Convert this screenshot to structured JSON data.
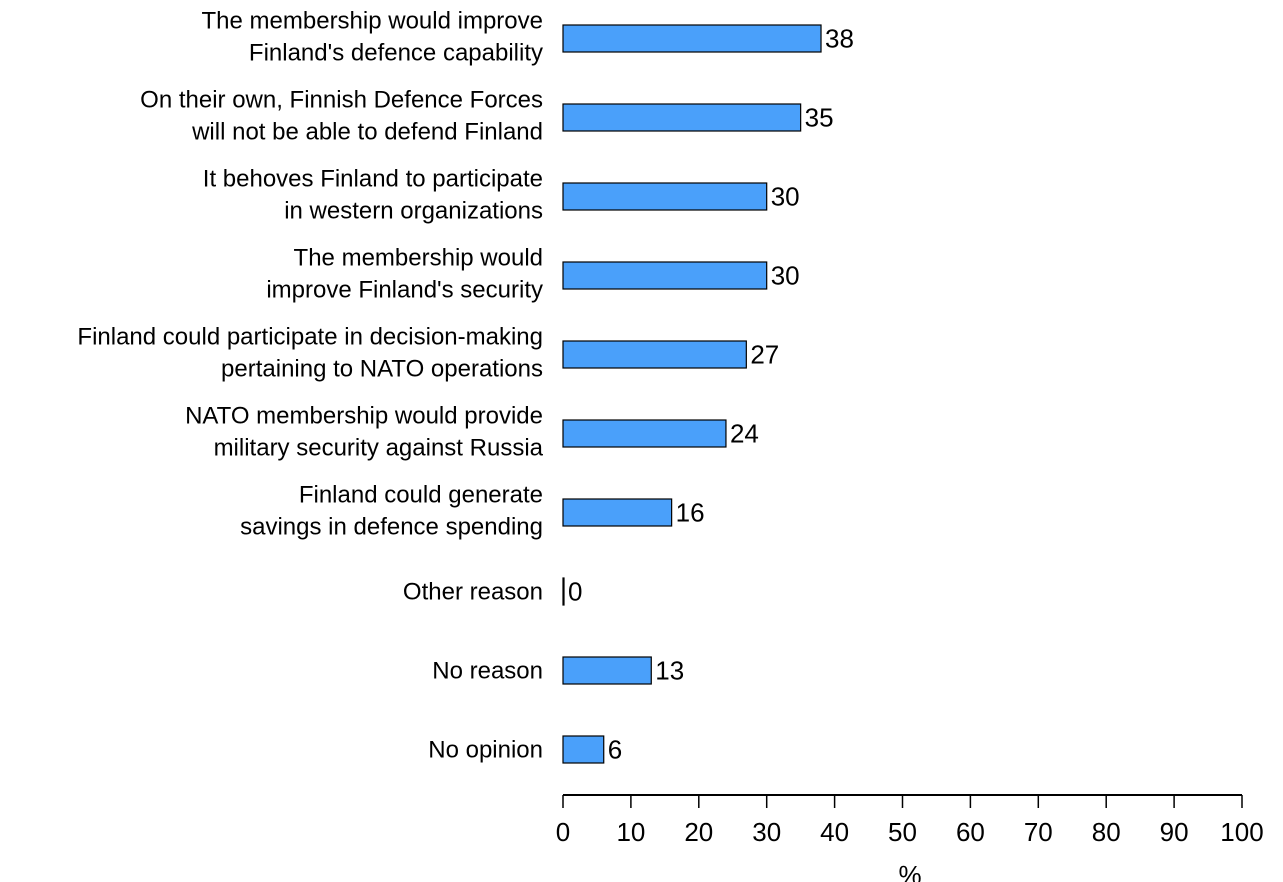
{
  "chart_data": {
    "type": "bar",
    "orientation": "horizontal",
    "categories": [
      [
        "The membership would improve",
        "Finland's defence capability"
      ],
      [
        "On their own, Finnish Defence Forces",
        "will not be able to defend Finland"
      ],
      [
        "It behoves Finland to participate",
        "in western organizations"
      ],
      [
        "The membership would",
        "improve Finland's security"
      ],
      [
        "Finland could participate in decision-making",
        "pertaining to NATO operations"
      ],
      [
        "NATO membership would provide",
        "military security against Russia"
      ],
      [
        "Finland could generate",
        "savings in defence spending"
      ],
      [
        "Other reason"
      ],
      [
        "No reason"
      ],
      [
        "No opinion"
      ]
    ],
    "values": [
      38,
      35,
      30,
      30,
      27,
      24,
      16,
      0,
      13,
      6
    ],
    "xlabel": "%",
    "xlim": [
      0,
      100
    ],
    "xticks": [
      0,
      10,
      20,
      30,
      40,
      50,
      60,
      70,
      80,
      90,
      100
    ],
    "grid": false,
    "colors": {
      "bar": "#4aa0fa",
      "outline": "#000000"
    }
  }
}
